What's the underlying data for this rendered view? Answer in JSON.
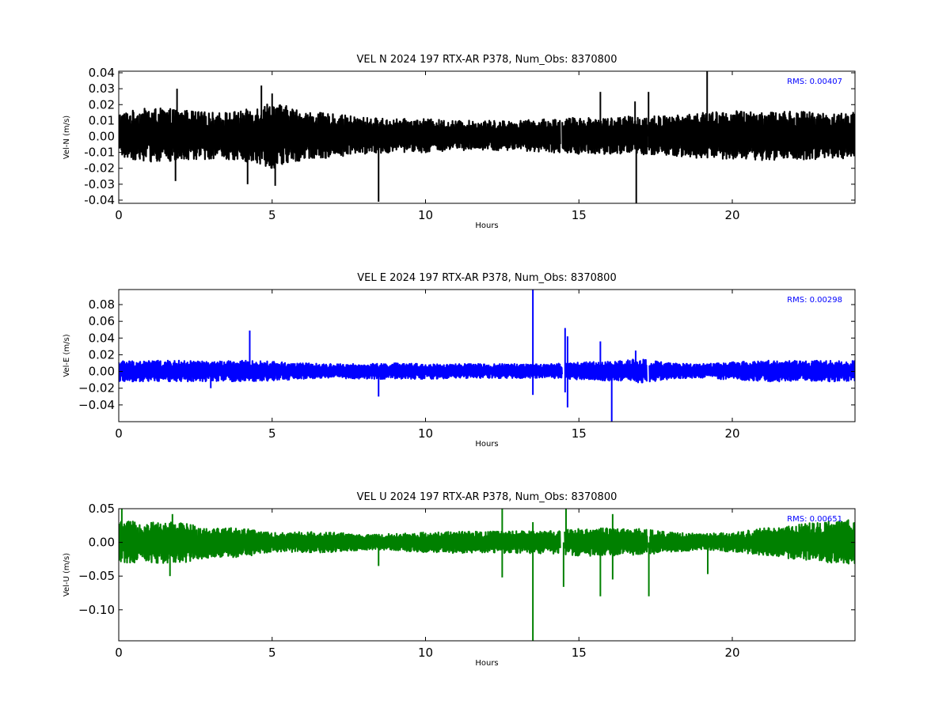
{
  "chart_data": [
    {
      "type": "line",
      "title": "VEL N 2024 197 RTX-AR  P378, Num_Obs: 8370800",
      "xlabel": "Hours",
      "ylabel": "Vel-N (m/s)",
      "rms_label": "RMS:  0.00407",
      "color": "#000000",
      "rms_color": "#0000ff",
      "xlim": [
        0,
        24
      ],
      "ylim": [
        -0.042,
        0.041
      ],
      "xticks": [
        0,
        5,
        10,
        15,
        20
      ],
      "yticks": [
        "0.04",
        "0.03",
        "0.02",
        "0.01",
        "0.00",
        "-0.01",
        "-0.02",
        "-0.03",
        "-0.04"
      ],
      "ytick_values": [
        0.04,
        0.03,
        0.02,
        0.01,
        0.0,
        -0.01,
        -0.02,
        -0.03,
        -0.04
      ],
      "gaps": [
        [
          14.38,
          14.44
        ],
        [
          17.22,
          17.27
        ]
      ],
      "envelope": [
        {
          "x": 0,
          "lo": -0.013,
          "hi": 0.015
        },
        {
          "x": 1,
          "lo": -0.016,
          "hi": 0.018
        },
        {
          "x": 2,
          "lo": -0.016,
          "hi": 0.017
        },
        {
          "x": 3,
          "lo": -0.014,
          "hi": 0.015
        },
        {
          "x": 4,
          "lo": -0.015,
          "hi": 0.016
        },
        {
          "x": 5,
          "lo": -0.02,
          "hi": 0.022
        },
        {
          "x": 6,
          "lo": -0.015,
          "hi": 0.016
        },
        {
          "x": 7,
          "lo": -0.013,
          "hi": 0.014
        },
        {
          "x": 8,
          "lo": -0.011,
          "hi": 0.012
        },
        {
          "x": 9,
          "lo": -0.01,
          "hi": 0.011
        },
        {
          "x": 10,
          "lo": -0.01,
          "hi": 0.011
        },
        {
          "x": 11,
          "lo": -0.009,
          "hi": 0.01
        },
        {
          "x": 12,
          "lo": -0.009,
          "hi": 0.01
        },
        {
          "x": 13,
          "lo": -0.009,
          "hi": 0.01
        },
        {
          "x": 14,
          "lo": -0.01,
          "hi": 0.011
        },
        {
          "x": 15,
          "lo": -0.011,
          "hi": 0.012
        },
        {
          "x": 16,
          "lo": -0.011,
          "hi": 0.012
        },
        {
          "x": 17,
          "lo": -0.012,
          "hi": 0.013
        },
        {
          "x": 18,
          "lo": -0.012,
          "hi": 0.013
        },
        {
          "x": 19,
          "lo": -0.014,
          "hi": 0.015
        },
        {
          "x": 20,
          "lo": -0.015,
          "hi": 0.016
        },
        {
          "x": 21,
          "lo": -0.015,
          "hi": 0.016
        },
        {
          "x": 22,
          "lo": -0.015,
          "hi": 0.016
        },
        {
          "x": 23,
          "lo": -0.014,
          "hi": 0.015
        },
        {
          "x": 24,
          "lo": -0.014,
          "hi": 0.015
        }
      ],
      "spikes": [
        {
          "x": 1.9,
          "y": 0.03
        },
        {
          "x": 1.85,
          "y": -0.028
        },
        {
          "x": 4.2,
          "y": -0.03
        },
        {
          "x": 4.65,
          "y": 0.032
        },
        {
          "x": 5.1,
          "y": -0.031
        },
        {
          "x": 5.0,
          "y": 0.027
        },
        {
          "x": 8.47,
          "y": -0.041
        },
        {
          "x": 15.7,
          "y": 0.028
        },
        {
          "x": 16.87,
          "y": -0.042
        },
        {
          "x": 16.83,
          "y": 0.022
        },
        {
          "x": 17.27,
          "y": 0.028
        },
        {
          "x": 19.18,
          "y": 0.041
        }
      ]
    },
    {
      "type": "line",
      "title": "VEL E 2024 197 RTX-AR  P378, Num_Obs: 8370800",
      "xlabel": "Hours",
      "ylabel": "Vel-E (m/s)",
      "rms_label": "RMS:  0.00298",
      "color": "#0000ff",
      "rms_color": "#0000ff",
      "xlim": [
        0,
        24
      ],
      "ylim": [
        -0.06,
        0.098
      ],
      "xticks": [
        0,
        5,
        10,
        15,
        20
      ],
      "yticks": [
        "0.08",
        "0.06",
        "0.04",
        "0.02",
        "0.00",
        "−0.02",
        "−0.04"
      ],
      "ytick_values": [
        0.08,
        0.06,
        0.04,
        0.02,
        0.0,
        -0.02,
        -0.04
      ],
      "gaps": [
        [
          14.45,
          14.55
        ],
        [
          17.2,
          17.28
        ]
      ],
      "envelope": [
        {
          "x": 0,
          "lo": -0.012,
          "hi": 0.013
        },
        {
          "x": 1,
          "lo": -0.012,
          "hi": 0.013
        },
        {
          "x": 2,
          "lo": -0.012,
          "hi": 0.013
        },
        {
          "x": 3,
          "lo": -0.012,
          "hi": 0.012
        },
        {
          "x": 4,
          "lo": -0.012,
          "hi": 0.013
        },
        {
          "x": 5,
          "lo": -0.011,
          "hi": 0.012
        },
        {
          "x": 6,
          "lo": -0.009,
          "hi": 0.01
        },
        {
          "x": 7,
          "lo": -0.008,
          "hi": 0.009
        },
        {
          "x": 8,
          "lo": -0.009,
          "hi": 0.009
        },
        {
          "x": 9,
          "lo": -0.009,
          "hi": 0.01
        },
        {
          "x": 10,
          "lo": -0.009,
          "hi": 0.009
        },
        {
          "x": 11,
          "lo": -0.008,
          "hi": 0.009
        },
        {
          "x": 12,
          "lo": -0.008,
          "hi": 0.009
        },
        {
          "x": 13,
          "lo": -0.008,
          "hi": 0.009
        },
        {
          "x": 14,
          "lo": -0.008,
          "hi": 0.009
        },
        {
          "x": 15,
          "lo": -0.01,
          "hi": 0.011
        },
        {
          "x": 16,
          "lo": -0.011,
          "hi": 0.012
        },
        {
          "x": 17,
          "lo": -0.014,
          "hi": 0.015
        },
        {
          "x": 18,
          "lo": -0.009,
          "hi": 0.01
        },
        {
          "x": 19,
          "lo": -0.008,
          "hi": 0.009
        },
        {
          "x": 20,
          "lo": -0.01,
          "hi": 0.011
        },
        {
          "x": 21,
          "lo": -0.012,
          "hi": 0.013
        },
        {
          "x": 22,
          "lo": -0.012,
          "hi": 0.013
        },
        {
          "x": 23,
          "lo": -0.012,
          "hi": 0.013
        },
        {
          "x": 24,
          "lo": -0.012,
          "hi": 0.013
        }
      ],
      "spikes": [
        {
          "x": 3.0,
          "y": -0.02
        },
        {
          "x": 4.27,
          "y": 0.049
        },
        {
          "x": 8.47,
          "y": -0.03
        },
        {
          "x": 13.5,
          "y": 0.098
        },
        {
          "x": 13.5,
          "y": -0.028
        },
        {
          "x": 14.55,
          "y": 0.052
        },
        {
          "x": 14.63,
          "y": 0.042
        },
        {
          "x": 14.63,
          "y": -0.043
        },
        {
          "x": 14.55,
          "y": -0.025
        },
        {
          "x": 15.7,
          "y": 0.036
        },
        {
          "x": 16.07,
          "y": -0.06
        },
        {
          "x": 16.85,
          "y": 0.025
        }
      ]
    },
    {
      "type": "line",
      "title": "VEL U 2024 197 RTX-AR  P378, Num_Obs: 8370800",
      "xlabel": "Hours",
      "ylabel": "Vel-U (m/s)",
      "rms_label": "RMS:  0.00651",
      "color": "#008000",
      "rms_color": "#0000ff",
      "xlim": [
        0,
        24
      ],
      "ylim": [
        -0.146,
        0.05
      ],
      "xticks": [
        0,
        5,
        10,
        15,
        20
      ],
      "yticks": [
        "0.05",
        "0.00",
        "−0.05",
        "−0.10"
      ],
      "ytick_values": [
        0.05,
        0.0,
        -0.05,
        -0.1
      ],
      "gaps": [
        [
          14.38,
          14.52
        ],
        [
          17.22,
          17.3
        ]
      ],
      "envelope": [
        {
          "x": 0,
          "lo": -0.03,
          "hi": 0.032
        },
        {
          "x": 1,
          "lo": -0.03,
          "hi": 0.03
        },
        {
          "x": 2,
          "lo": -0.032,
          "hi": 0.03
        },
        {
          "x": 3,
          "lo": -0.022,
          "hi": 0.022
        },
        {
          "x": 4,
          "lo": -0.022,
          "hi": 0.022
        },
        {
          "x": 5,
          "lo": -0.014,
          "hi": 0.014
        },
        {
          "x": 6,
          "lo": -0.015,
          "hi": 0.016
        },
        {
          "x": 7,
          "lo": -0.015,
          "hi": 0.015
        },
        {
          "x": 8,
          "lo": -0.011,
          "hi": 0.011
        },
        {
          "x": 9,
          "lo": -0.012,
          "hi": 0.013
        },
        {
          "x": 10,
          "lo": -0.015,
          "hi": 0.015
        },
        {
          "x": 11,
          "lo": -0.016,
          "hi": 0.016
        },
        {
          "x": 12,
          "lo": -0.016,
          "hi": 0.016
        },
        {
          "x": 13,
          "lo": -0.016,
          "hi": 0.017
        },
        {
          "x": 14,
          "lo": -0.017,
          "hi": 0.017
        },
        {
          "x": 15,
          "lo": -0.02,
          "hi": 0.021
        },
        {
          "x": 16,
          "lo": -0.02,
          "hi": 0.021
        },
        {
          "x": 17,
          "lo": -0.019,
          "hi": 0.02
        },
        {
          "x": 18,
          "lo": -0.014,
          "hi": 0.015
        },
        {
          "x": 19,
          "lo": -0.012,
          "hi": 0.013
        },
        {
          "x": 20,
          "lo": -0.014,
          "hi": 0.015
        },
        {
          "x": 21,
          "lo": -0.02,
          "hi": 0.021
        },
        {
          "x": 22,
          "lo": -0.025,
          "hi": 0.026
        },
        {
          "x": 23,
          "lo": -0.03,
          "hi": 0.031
        },
        {
          "x": 24,
          "lo": -0.032,
          "hi": 0.034
        }
      ],
      "spikes": [
        {
          "x": 0.1,
          "y": 0.05
        },
        {
          "x": 1.67,
          "y": -0.05
        },
        {
          "x": 1.75,
          "y": 0.042
        },
        {
          "x": 8.47,
          "y": -0.035
        },
        {
          "x": 12.5,
          "y": 0.05
        },
        {
          "x": 12.5,
          "y": -0.052
        },
        {
          "x": 13.5,
          "y": -0.146
        },
        {
          "x": 13.5,
          "y": 0.03
        },
        {
          "x": 14.5,
          "y": -0.066
        },
        {
          "x": 14.58,
          "y": 0.05
        },
        {
          "x": 15.7,
          "y": -0.08
        },
        {
          "x": 16.1,
          "y": -0.055
        },
        {
          "x": 16.1,
          "y": 0.042
        },
        {
          "x": 17.28,
          "y": -0.08
        },
        {
          "x": 19.2,
          "y": -0.047
        }
      ]
    }
  ]
}
